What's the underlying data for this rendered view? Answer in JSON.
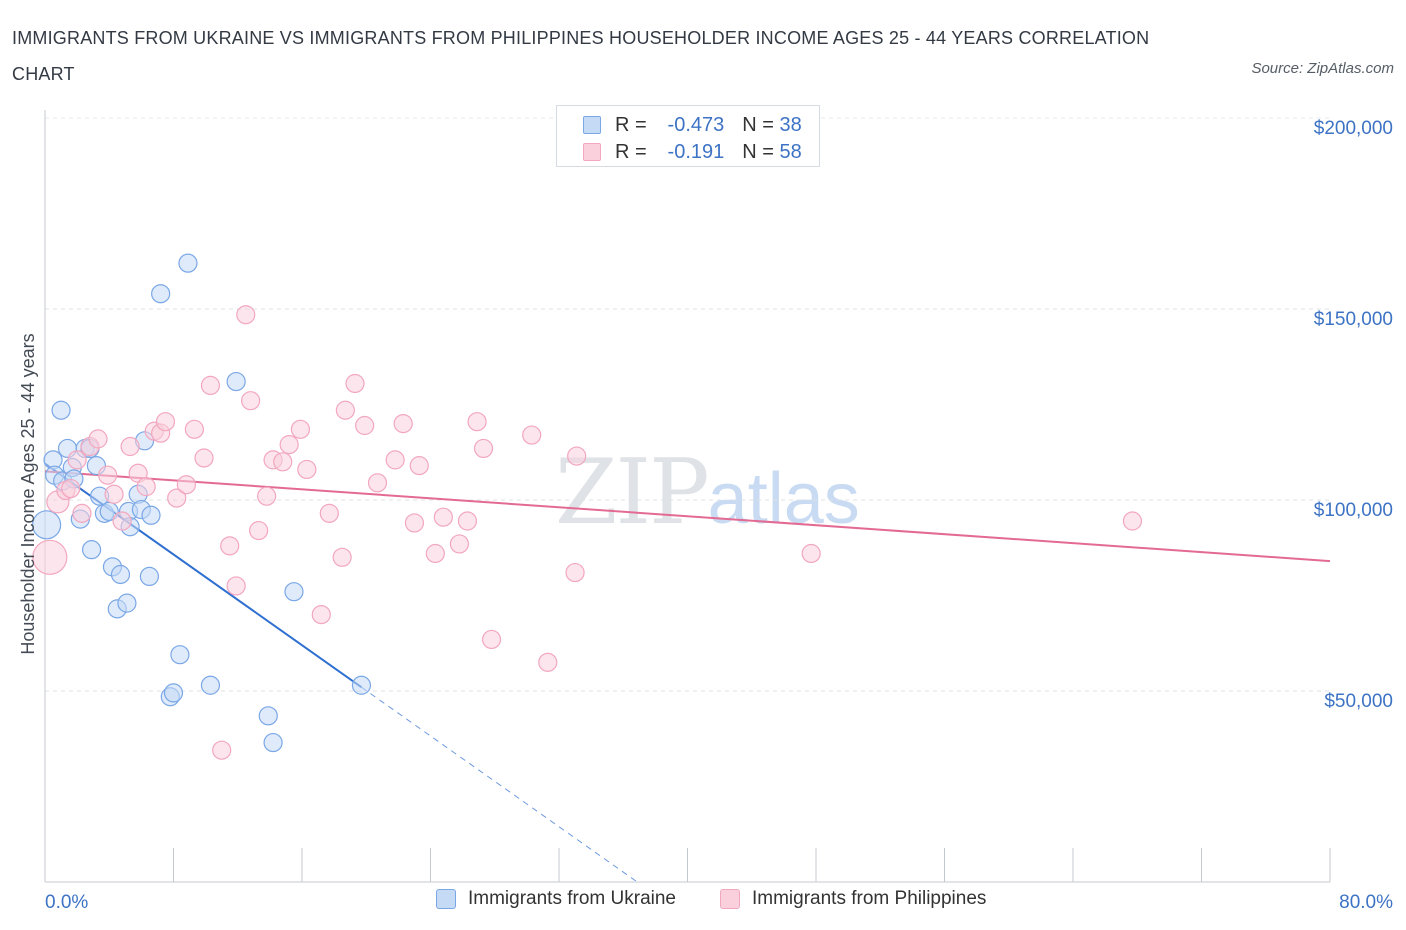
{
  "title": "IMMIGRANTS FROM UKRAINE VS IMMIGRANTS FROM PHILIPPINES HOUSEHOLDER INCOME AGES 25 - 44 YEARS CORRELATION CHART",
  "source": "Source: ZipAtlas.com",
  "watermark": {
    "zip": "ZIP",
    "atlas": "atlas"
  },
  "legend": {
    "rows": [
      {
        "r_label": "R =",
        "r_value": "-0.473",
        "n_label": "N =",
        "n_value": "38"
      },
      {
        "r_label": "R =",
        "r_value": "-0.191",
        "n_label": "N =",
        "n_value": "58"
      }
    ]
  },
  "chart_data": {
    "type": "scatter",
    "xlabel": "",
    "ylabel": "Householder Income Ages 25 - 44 years",
    "xlim": [
      0,
      80
    ],
    "ylim": [
      0,
      200000
    ],
    "x_tick_labels": [
      "0.0%",
      "80.0%"
    ],
    "y_ticks": [
      50000,
      100000,
      150000,
      200000
    ],
    "y_tick_labels": [
      "$50,000",
      "$100,000",
      "$150,000",
      "$200,000"
    ],
    "grid": true,
    "legend_position": "bottom",
    "series": [
      {
        "name": "Immigrants from Ukraine",
        "color": "#7aa7e6",
        "fill": "#c5daf5",
        "trend_color": "#2f6fd0",
        "trend": {
          "x0": 0.0,
          "y0": 109500,
          "x1": 19.7,
          "y1": 51000,
          "x_dash_end": 37.0
        },
        "points": [
          [
            0.1,
            93500
          ],
          [
            0.5,
            110500
          ],
          [
            0.6,
            106500
          ],
          [
            1.0,
            123500
          ],
          [
            1.1,
            105000
          ],
          [
            1.4,
            113500
          ],
          [
            1.7,
            108500
          ],
          [
            1.8,
            105500
          ],
          [
            2.2,
            95000
          ],
          [
            2.5,
            113500
          ],
          [
            2.8,
            113500
          ],
          [
            2.9,
            87000
          ],
          [
            3.2,
            109000
          ],
          [
            3.4,
            101000
          ],
          [
            3.7,
            96500
          ],
          [
            4.0,
            97000
          ],
          [
            4.2,
            82500
          ],
          [
            4.5,
            71500
          ],
          [
            4.7,
            80500
          ],
          [
            5.1,
            73000
          ],
          [
            5.2,
            97000
          ],
          [
            5.3,
            93000
          ],
          [
            5.8,
            101500
          ],
          [
            6.0,
            97500
          ],
          [
            6.2,
            115500
          ],
          [
            6.5,
            80000
          ],
          [
            6.6,
            96000
          ],
          [
            7.2,
            154000
          ],
          [
            7.8,
            48500
          ],
          [
            8.0,
            49500
          ],
          [
            8.4,
            59500
          ],
          [
            8.9,
            162000
          ],
          [
            10.3,
            51500
          ],
          [
            11.9,
            131000
          ],
          [
            13.9,
            43500
          ],
          [
            14.2,
            36500
          ],
          [
            15.5,
            76000
          ],
          [
            19.7,
            51500
          ]
        ]
      },
      {
        "name": "Immigrants from Philippines",
        "color": "#f2a7bf",
        "fill": "#fad0dd",
        "trend_color": "#e36a92",
        "trend": {
          "x0": 0.0,
          "y0": 107500,
          "x1": 80.0,
          "y1": 84000
        },
        "points": [
          [
            0.3,
            85000
          ],
          [
            0.8,
            99500
          ],
          [
            1.3,
            102500
          ],
          [
            1.6,
            103000
          ],
          [
            2.0,
            110500
          ],
          [
            2.3,
            96500
          ],
          [
            2.8,
            114000
          ],
          [
            3.3,
            116000
          ],
          [
            3.9,
            106500
          ],
          [
            4.3,
            101500
          ],
          [
            4.8,
            94500
          ],
          [
            5.3,
            114000
          ],
          [
            5.8,
            107000
          ],
          [
            6.3,
            103500
          ],
          [
            6.8,
            118000
          ],
          [
            7.2,
            117500
          ],
          [
            7.5,
            120500
          ],
          [
            8.2,
            100500
          ],
          [
            8.8,
            104000
          ],
          [
            9.3,
            118500
          ],
          [
            9.9,
            111000
          ],
          [
            10.3,
            130000
          ],
          [
            11.0,
            34500
          ],
          [
            11.5,
            88000
          ],
          [
            11.9,
            77500
          ],
          [
            12.5,
            148500
          ],
          [
            12.8,
            126000
          ],
          [
            13.3,
            92000
          ],
          [
            13.8,
            101000
          ],
          [
            14.2,
            110500
          ],
          [
            14.8,
            110000
          ],
          [
            15.2,
            114500
          ],
          [
            15.9,
            118500
          ],
          [
            16.3,
            108000
          ],
          [
            17.2,
            70000
          ],
          [
            17.7,
            96500
          ],
          [
            18.5,
            85000
          ],
          [
            18.7,
            123500
          ],
          [
            19.3,
            130500
          ],
          [
            19.9,
            119500
          ],
          [
            20.7,
            104500
          ],
          [
            21.8,
            110500
          ],
          [
            22.3,
            120000
          ],
          [
            23.0,
            94000
          ],
          [
            23.3,
            109000
          ],
          [
            24.3,
            86000
          ],
          [
            24.8,
            95500
          ],
          [
            25.8,
            88500
          ],
          [
            26.3,
            94500
          ],
          [
            26.9,
            120500
          ],
          [
            27.3,
            113500
          ],
          [
            27.8,
            63500
          ],
          [
            30.3,
            117000
          ],
          [
            31.3,
            57500
          ],
          [
            33.0,
            81000
          ],
          [
            33.1,
            111500
          ],
          [
            47.7,
            86000
          ],
          [
            67.7,
            94500
          ]
        ]
      }
    ]
  }
}
